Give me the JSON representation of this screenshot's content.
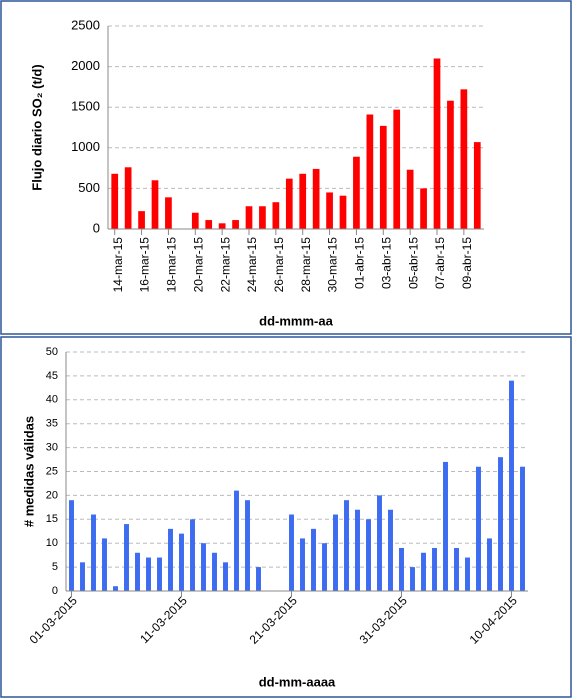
{
  "chart_data": [
    {
      "type": "bar",
      "y_label": "Flujo diario SO₂ (t/d)",
      "x_label": "dd-mmm-aa",
      "categories": [
        "14-mar-15",
        null,
        "16-mar-15",
        null,
        "18-mar-15",
        null,
        "20-mar-15",
        null,
        "22-mar-15",
        null,
        "24-mar-15",
        null,
        "26-mar-15",
        null,
        "28-mar-15",
        null,
        "30-mar-15",
        null,
        "01-abr-15",
        null,
        "03-abr-15",
        null,
        "05-abr-15",
        null,
        "07-abr-15",
        null,
        "09-abr-15",
        null
      ],
      "values": [
        680,
        760,
        220,
        600,
        390,
        null,
        200,
        110,
        70,
        110,
        280,
        280,
        330,
        620,
        680,
        740,
        450,
        410,
        890,
        1410,
        1270,
        1470,
        730,
        500,
        2100,
        1580,
        1720,
        1070
      ],
      "color": "#ff0000",
      "ylim": [
        0,
        2500
      ],
      "yticks": [
        0,
        500,
        1000,
        1500,
        2000,
        2500
      ],
      "grid": true
    },
    {
      "type": "bar",
      "y_label": "# medidas válidas",
      "x_label": "dd-mm-aaaa",
      "categories": [
        "01-03-2015",
        null,
        null,
        null,
        null,
        null,
        null,
        null,
        null,
        null,
        "11-03-2015",
        null,
        null,
        null,
        null,
        null,
        null,
        null,
        null,
        null,
        "21-03-2015",
        null,
        null,
        null,
        null,
        null,
        null,
        null,
        null,
        null,
        "31-03-2015",
        null,
        null,
        null,
        null,
        null,
        null,
        null,
        null,
        null,
        "10-04-2015",
        null
      ],
      "values": [
        19,
        6,
        16,
        11,
        1,
        14,
        8,
        7,
        7,
        13,
        12,
        15,
        10,
        8,
        6,
        21,
        19,
        5,
        null,
        null,
        16,
        11,
        13,
        10,
        16,
        19,
        17,
        15,
        20,
        17,
        9,
        5,
        8,
        9,
        27,
        9,
        7,
        26,
        11,
        28,
        44,
        26
      ],
      "color": "#3d6cf0",
      "ylim": [
        0,
        50
      ],
      "yticks": [
        0,
        5,
        10,
        15,
        20,
        25,
        30,
        35,
        40,
        45,
        50
      ],
      "grid": true
    }
  ]
}
